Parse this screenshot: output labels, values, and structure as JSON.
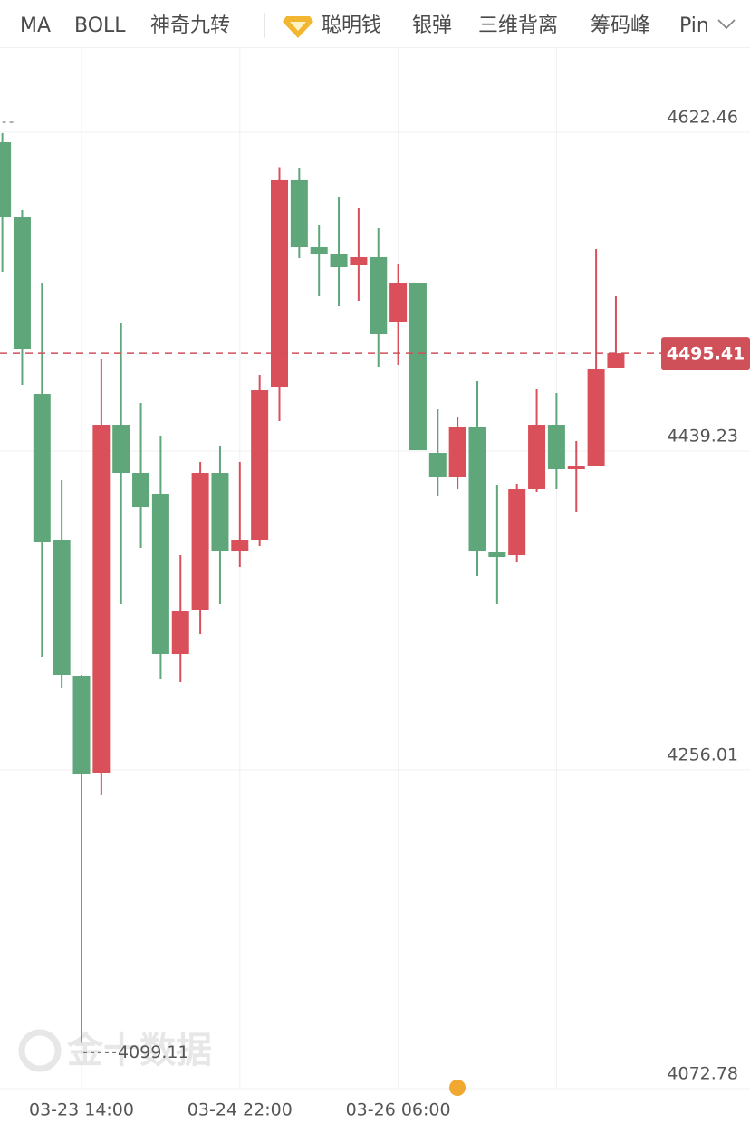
{
  "toolbar": {
    "items": [
      "MA",
      "BOLL",
      "神奇九转",
      "聪明钱",
      "银弹",
      "三维背离",
      "筹码峰",
      "Pin"
    ]
  },
  "chart_data": {
    "type": "candlestick",
    "watermark": "金十数据",
    "categories": [
      null,
      null,
      null,
      null,
      "03-23 14:00",
      null,
      null,
      null,
      null,
      null,
      null,
      null,
      "03-24 22:00",
      null,
      null,
      null,
      null,
      null,
      null,
      null,
      "03-26 06:00",
      null,
      null,
      null,
      null,
      null,
      null,
      null,
      null,
      null,
      null,
      null
    ],
    "open": [
      4616.73,
      4573.53,
      4472.02,
      4388.22,
      4310.14,
      4254.44,
      4454.32,
      4426.74,
      4414.24,
      4322.63,
      4348.14,
      4426.74,
      4381.97,
      4388.22,
      4476.19,
      4594.91,
      4556.35,
      4552.19,
      4545.94,
      4550.63,
      4513.67,
      4535.53,
      4438.19,
      4424.14,
      4453.28,
      4380.93,
      4379.36,
      4417.37,
      4454.32,
      4428.82,
      4430.9,
      4487.12
    ],
    "high": [
      4621.94,
      4577.69,
      4536.05,
      4422.58,
      4310.66,
      4492.33,
      4512.63,
      4466.82,
      4448.08,
      4379.36,
      4432.98,
      4442.36,
      4432.98,
      4482.96,
      4602.44,
      4601.64,
      4569.37,
      4585.5,
      4578.73,
      4567.28,
      4546.46,
      4535.53,
      4463.17,
      4459.01,
      4479.31,
      4419.97,
      4420.49,
      4474.63,
      4472.54,
      4444.96,
      4555.31,
      4528.24
    ],
    "low": [
      4542.3,
      4477.23,
      4321.07,
      4302.86,
      4099.11,
      4241.42,
      4351.26,
      4383.53,
      4308.06,
      4306.5,
      4334.08,
      4351.26,
      4372.6,
      4384.57,
      4456.41,
      4550.11,
      4528.24,
      4522.52,
      4525.64,
      4487.64,
      4488.67,
      4439.75,
      4413.2,
      4417.37,
      4367.4,
      4351.26,
      4375.72,
      4415.81,
      4417.37,
      4404.36,
      4430.9,
      4487.12
    ],
    "close": [
      4573.53,
      4498.05,
      4387.18,
      4310.66,
      4253.4,
      4454.32,
      4426.74,
      4406.96,
      4322.63,
      4347.1,
      4426.74,
      4381.97,
      4388.22,
      4474.11,
      4594.91,
      4556.35,
      4552.19,
      4544.9,
      4550.63,
      4506.38,
      4535.53,
      4439.75,
      4424.14,
      4453.28,
      4381.97,
      4378.32,
      4417.37,
      4454.32,
      4428.82,
      4430.38,
      4486.6,
      4495.41
    ],
    "up_color": "#d9505b",
    "down_color": "#5fa67a",
    "last_price_color": "#d0505a",
    "ylim": [
      4072.78,
      4671.4
    ],
    "yticks": [
      4072.78,
      4256.01,
      4439.23,
      4622.46
    ],
    "grid": true
  }
}
